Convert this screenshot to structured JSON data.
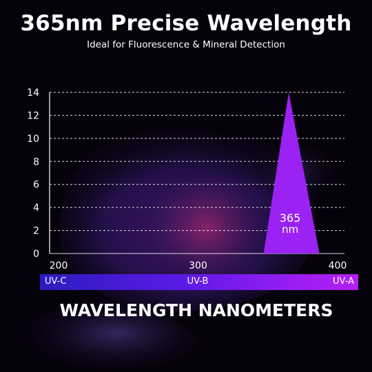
{
  "header": {
    "title": "365nm Precise Wavelength",
    "subtitle": "Ideal for Fluorescence & Mineral Detection"
  },
  "colors": {
    "peak": "#9a22f2",
    "grid": "#ffffff",
    "text": "#ffffff"
  },
  "chart_data": {
    "type": "area",
    "title": "",
    "xlabel": "WAVELENGTH NANOMETERS",
    "ylabel": "",
    "xlim": [
      200,
      400
    ],
    "ylim": [
      0,
      14
    ],
    "x_ticks": [
      "200",
      "300",
      "400"
    ],
    "y_ticks": [
      "0",
      "2",
      "4",
      "6",
      "8",
      "10",
      "12",
      "14"
    ],
    "grid": true,
    "series": [
      {
        "x": [
          347,
          365,
          387
        ],
        "y": [
          0,
          14,
          0
        ]
      }
    ],
    "annotations": [
      {
        "text": "365",
        "x": 365
      },
      {
        "text": "nm",
        "x": 365
      }
    ],
    "bands": [
      {
        "label": "UV-C"
      },
      {
        "label": "UV-B"
      },
      {
        "label": "UV-A"
      }
    ]
  }
}
